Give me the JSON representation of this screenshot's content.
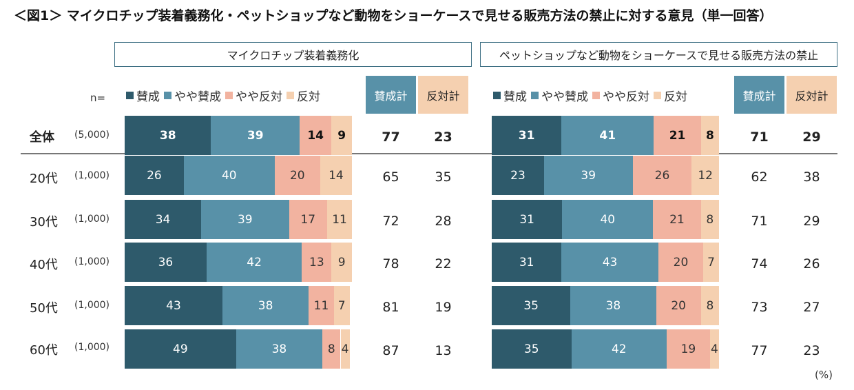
{
  "title": "＜図1＞ マイクロチップ装着義務化・ペットショップなど動物をショーケースで見せる販売方法の禁止に対する意見（単一回答）",
  "n_label": "n=",
  "unit": "(%)",
  "colors": {
    "agree": "#2e5a6b",
    "somewhat_agree": "#5891a8",
    "somewhat_disagree": "#f2b3a0",
    "disagree": "#f5d0b0",
    "agree_total_bg": "#5891a8",
    "disagree_total_bg": "#f5d0b0"
  },
  "legend": [
    "賛成",
    "やや賛成",
    "やや反対",
    "反対"
  ],
  "sum_headers": {
    "agree_total": "賛成計",
    "disagree_total": "反対計"
  },
  "rows": [
    {
      "label": "全体",
      "n": "(5,000)"
    },
    {
      "label": "20代",
      "n": "(1,000)"
    },
    {
      "label": "30代",
      "n": "(1,000)"
    },
    {
      "label": "40代",
      "n": "(1,000)"
    },
    {
      "label": "50代",
      "n": "(1,000)"
    },
    {
      "label": "60代",
      "n": "(1,000)"
    }
  ],
  "chart_data": [
    {
      "type": "bar",
      "orientation": "horizontal",
      "stacked": true,
      "title": "マイクロチップ装着義務化",
      "categories": [
        "全体",
        "20代",
        "30代",
        "40代",
        "50代",
        "60代"
      ],
      "series": [
        {
          "name": "賛成",
          "values": [
            38,
            26,
            34,
            36,
            43,
            49
          ]
        },
        {
          "name": "やや賛成",
          "values": [
            39,
            40,
            39,
            42,
            38,
            38
          ]
        },
        {
          "name": "やや反対",
          "values": [
            14,
            20,
            17,
            13,
            11,
            8
          ]
        },
        {
          "name": "反対",
          "values": [
            9,
            14,
            11,
            9,
            7,
            4
          ]
        }
      ],
      "agree_total": [
        77,
        65,
        72,
        78,
        81,
        87
      ],
      "disagree_total": [
        23,
        35,
        28,
        22,
        19,
        13
      ],
      "xlim": [
        0,
        100
      ]
    },
    {
      "type": "bar",
      "orientation": "horizontal",
      "stacked": true,
      "title": "ペットショップなど動物をショーケースで見せる販売方法の禁止",
      "categories": [
        "全体",
        "20代",
        "30代",
        "40代",
        "50代",
        "60代"
      ],
      "series": [
        {
          "name": "賛成",
          "values": [
            31,
            23,
            31,
            31,
            35,
            35
          ]
        },
        {
          "name": "やや賛成",
          "values": [
            41,
            39,
            40,
            43,
            38,
            42
          ]
        },
        {
          "name": "やや反対",
          "values": [
            21,
            26,
            21,
            20,
            20,
            19
          ]
        },
        {
          "name": "反対",
          "values": [
            8,
            12,
            8,
            7,
            8,
            4
          ]
        }
      ],
      "agree_total": [
        71,
        62,
        71,
        74,
        73,
        77
      ],
      "disagree_total": [
        29,
        38,
        29,
        26,
        27,
        23
      ],
      "xlim": [
        0,
        100
      ]
    }
  ]
}
